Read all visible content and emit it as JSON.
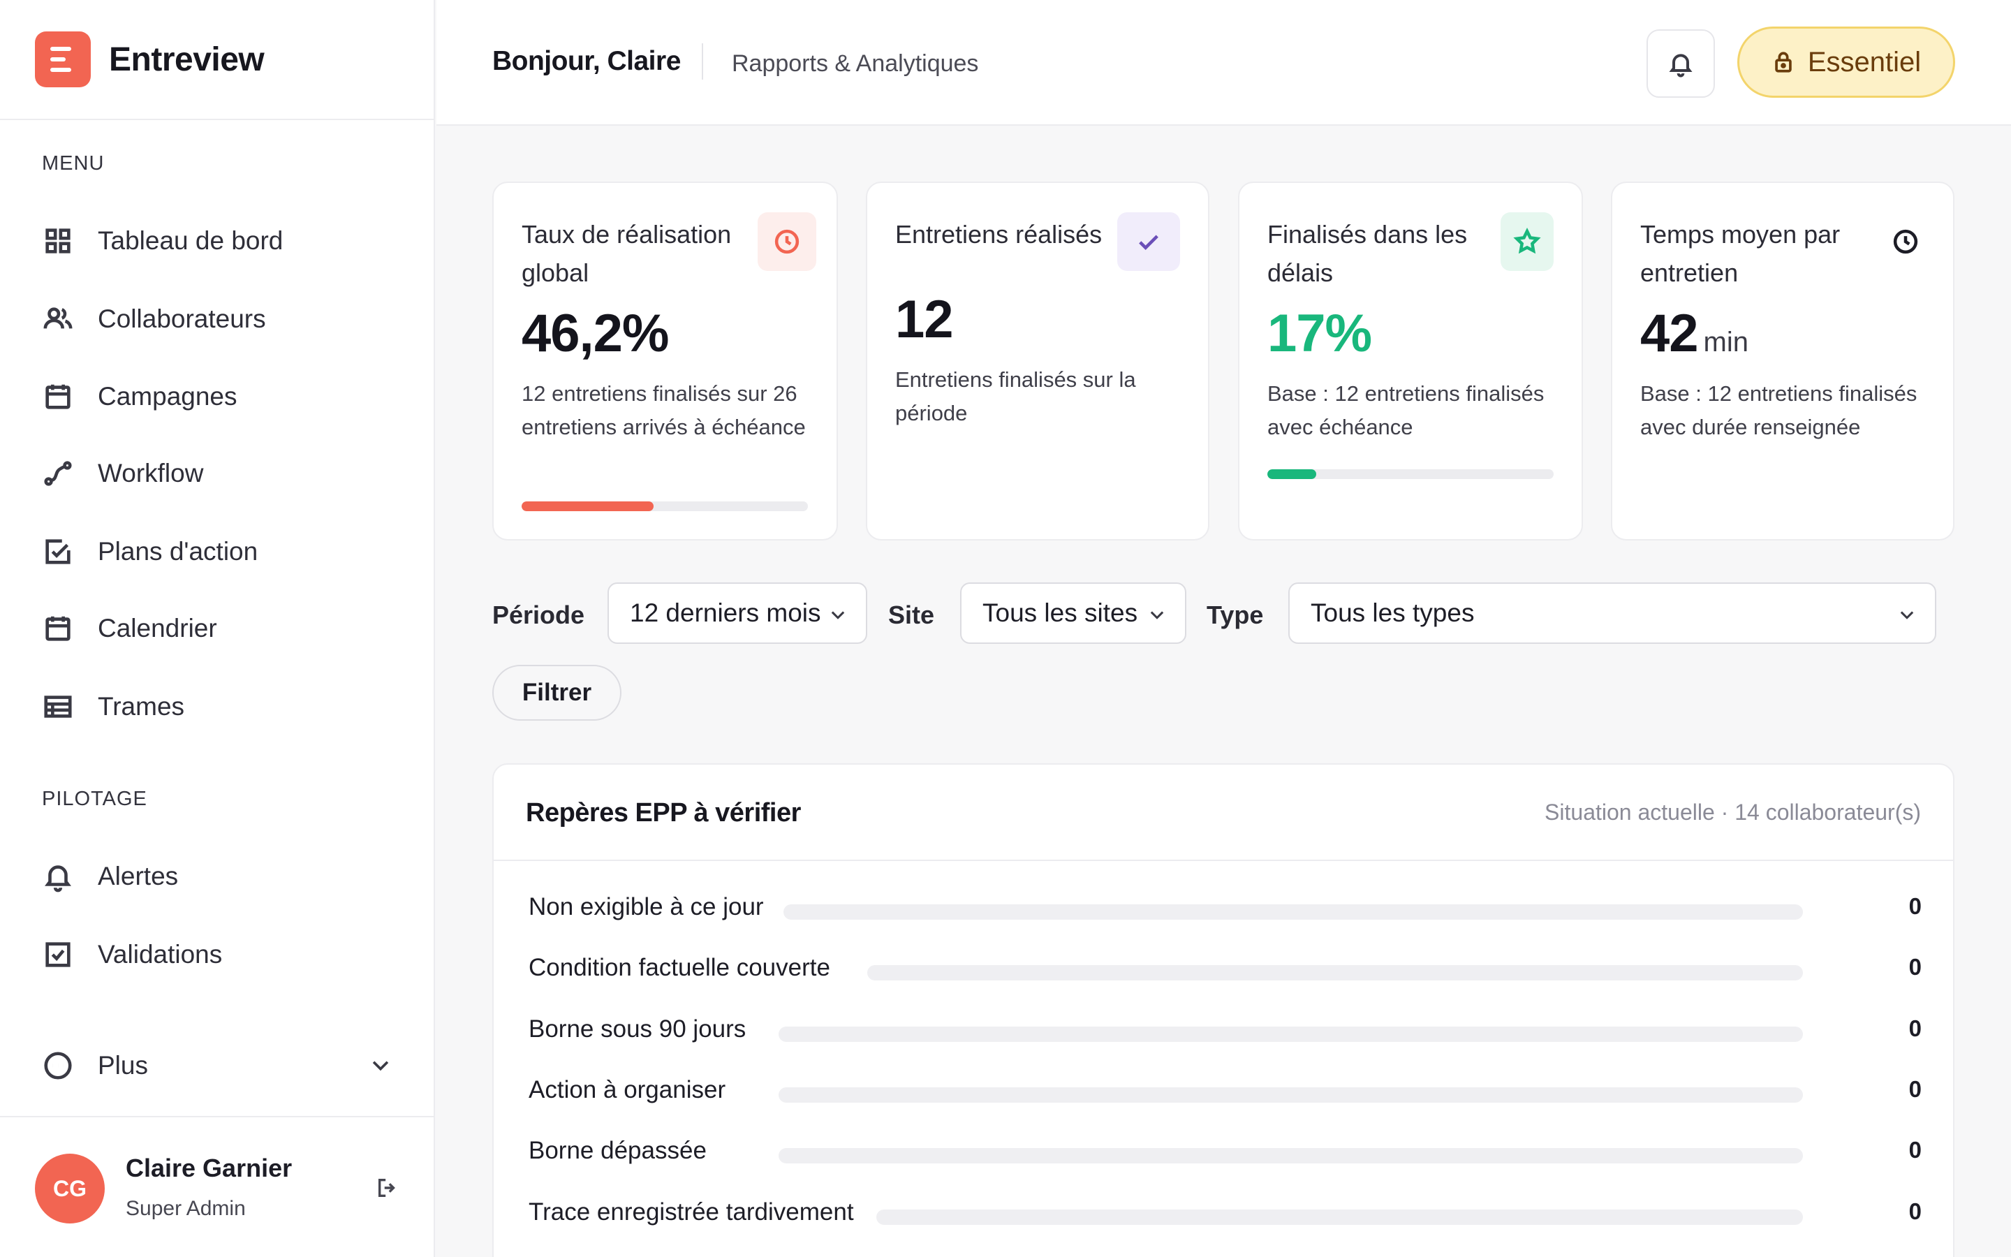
{
  "app": {
    "name": "Entreview"
  },
  "sidebar": {
    "sections": [
      {
        "label": "MENU"
      },
      {
        "label": "PILOTAGE"
      }
    ],
    "items": [
      {
        "label": "Tableau de bord",
        "icon": "grid-icon"
      },
      {
        "label": "Collaborateurs",
        "icon": "users-icon"
      },
      {
        "label": "Campagnes",
        "icon": "calendar-icon"
      },
      {
        "label": "Workflow",
        "icon": "workflow-icon"
      },
      {
        "label": "Plans d'action",
        "icon": "checklist-icon"
      },
      {
        "label": "Calendrier",
        "icon": "calendar-grid-icon"
      },
      {
        "label": "Trames",
        "icon": "table-icon"
      },
      {
        "label": "Alertes",
        "icon": "bell-icon"
      },
      {
        "label": "Validations",
        "icon": "checkbox-icon"
      },
      {
        "label": "Plus",
        "icon": "more-icon"
      }
    ],
    "user": {
      "initials": "CG",
      "name": "Claire Garnier",
      "role": "Super Admin"
    }
  },
  "header": {
    "greeting": "Bonjour, Claire",
    "breadcrumb": "Rapports & Analytiques",
    "plan_label": "Essentiel"
  },
  "kpis": [
    {
      "title": "Taux de réalisation global",
      "value": "46,2%",
      "unit": "",
      "description": "12 entretiens finalisés sur 26 entretiens arrivés à échéance",
      "progress": 0.462,
      "progress_color": "#f26552",
      "icon": "clock-icon",
      "icon_color": "#f26552",
      "icon_bg": "#fdeeec"
    },
    {
      "title": "Entretiens réalisés",
      "value": "12",
      "unit": "",
      "description": "Entretiens finalisés sur la période",
      "progress": null,
      "icon": "check-icon",
      "icon_color": "#6b4fb8",
      "icon_bg": "#f1edfb"
    },
    {
      "title": "Finalisés dans les délais",
      "value": "17%",
      "value_color": "#19b77c",
      "unit": "",
      "description": "Base : 12 entretiens finalisés avec échéance",
      "progress": 0.17,
      "progress_color": "#19b77c",
      "icon": "star-icon",
      "icon_color": "#19b77c",
      "icon_bg": "#e6f7ef"
    },
    {
      "title": "Temps moyen par entretien",
      "value": "42",
      "unit": "min",
      "description": "Base : 12 entretiens finalisés avec durée renseignée",
      "progress": null,
      "icon": "clock-icon",
      "icon_color": "#1d1d26",
      "icon_bg": "#ffffff"
    }
  ],
  "filters": {
    "periode": {
      "label": "Période",
      "value": "12 derniers mois"
    },
    "site": {
      "label": "Site",
      "value": "Tous les sites"
    },
    "type": {
      "label": "Type",
      "value": "Tous les types"
    },
    "submit_label": "Filtrer"
  },
  "epp": {
    "title": "Repères EPP à vérifier",
    "subtitle": "Situation actuelle · 14 collaborateur(s)",
    "rows": [
      {
        "label": "Non exigible à ce jour",
        "count": 0
      },
      {
        "label": "Condition factuelle couverte",
        "count": 0
      },
      {
        "label": "Borne sous 90 jours",
        "count": 0
      },
      {
        "label": "Action à organiser",
        "count": 0
      },
      {
        "label": "Borne dépassée",
        "count": 0
      },
      {
        "label": "Trace enregistrée tardivement",
        "count": 0
      }
    ]
  }
}
